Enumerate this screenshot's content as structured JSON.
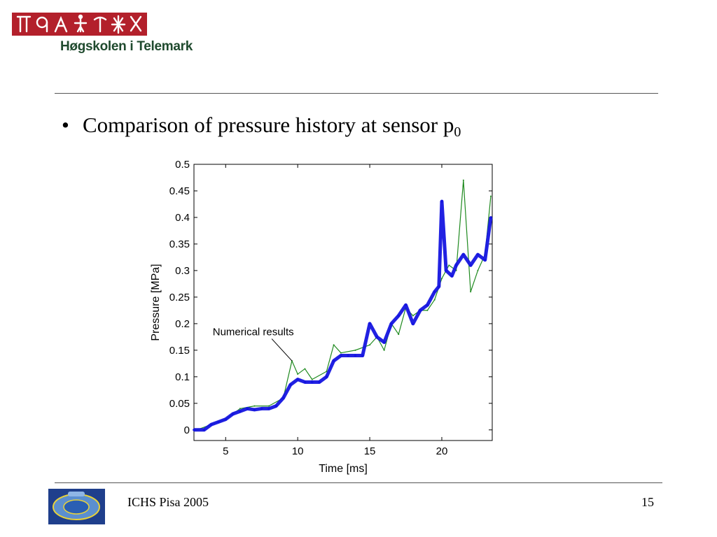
{
  "header": {
    "institution": "Høgskolen i Telemark"
  },
  "slide": {
    "bullet": "•",
    "heading_text": "Comparison of pressure history at sensor p",
    "heading_subscript": "0"
  },
  "footer": {
    "conference": "ICHS Pisa 2005",
    "page_number": "15"
  },
  "colors": {
    "measured": "#1515e0",
    "numerical": "#1f8a1f",
    "logo_red": "#b3202b",
    "logo_text": "#1f4a2e",
    "conf_logo_blue": "#1f3f8c"
  },
  "chart_data": {
    "type": "line",
    "xlabel": "Time [ms]",
    "ylabel": "Pressure [MPa]",
    "xlim": [
      2.8,
      23.5
    ],
    "ylim": [
      -0.02,
      0.5
    ],
    "xticks": [
      5,
      10,
      15,
      20
    ],
    "yticks": [
      0,
      0.05,
      0.1,
      0.15,
      0.2,
      0.25,
      0.3,
      0.35,
      0.4,
      0.45,
      0.5
    ],
    "grid": false,
    "annotation": {
      "text": "Numerical results",
      "points_to": [
        9.6,
        0.13
      ]
    },
    "series": [
      {
        "color": "#1f8a1f",
        "x": [
          3.0,
          4.0,
          5.0,
          6.0,
          7.0,
          8.0,
          9.0,
          9.6,
          10.0,
          10.5,
          11.0,
          12.0,
          12.5,
          13.0,
          14.0,
          15.0,
          15.5,
          16.0,
          16.5,
          17.0,
          17.5,
          18.0,
          18.5,
          19.0,
          19.5,
          20.0,
          20.5,
          21.0,
          21.5,
          22.0,
          22.5,
          23.0,
          23.4
        ],
        "values": [
          0.0,
          0.01,
          0.02,
          0.04,
          0.045,
          0.045,
          0.06,
          0.13,
          0.105,
          0.115,
          0.095,
          0.11,
          0.16,
          0.145,
          0.15,
          0.16,
          0.175,
          0.15,
          0.2,
          0.18,
          0.23,
          0.215,
          0.225,
          0.225,
          0.245,
          0.285,
          0.31,
          0.3,
          0.47,
          0.26,
          0.3,
          0.33,
          0.44
        ]
      },
      {
        "color": "#1515e0",
        "x": [
          2.8,
          3.5,
          4.0,
          4.5,
          5.0,
          5.5,
          6.0,
          6.5,
          7.0,
          7.5,
          8.0,
          8.5,
          9.0,
          9.5,
          10.0,
          10.5,
          11.0,
          11.5,
          12.0,
          12.5,
          13.0,
          13.5,
          14.0,
          14.5,
          15.0,
          15.5,
          16.0,
          16.5,
          17.0,
          17.5,
          18.0,
          18.5,
          19.0,
          19.5,
          19.8,
          20.0,
          20.3,
          20.7,
          21.0,
          21.5,
          22.0,
          22.5,
          23.0,
          23.4
        ],
        "values": [
          0.0,
          0.0,
          0.01,
          0.015,
          0.02,
          0.03,
          0.035,
          0.04,
          0.038,
          0.04,
          0.04,
          0.045,
          0.06,
          0.085,
          0.095,
          0.09,
          0.09,
          0.09,
          0.1,
          0.13,
          0.14,
          0.14,
          0.14,
          0.14,
          0.2,
          0.175,
          0.165,
          0.2,
          0.215,
          0.235,
          0.2,
          0.225,
          0.235,
          0.26,
          0.27,
          0.43,
          0.3,
          0.29,
          0.31,
          0.33,
          0.31,
          0.33,
          0.32,
          0.4
        ]
      }
    ]
  }
}
